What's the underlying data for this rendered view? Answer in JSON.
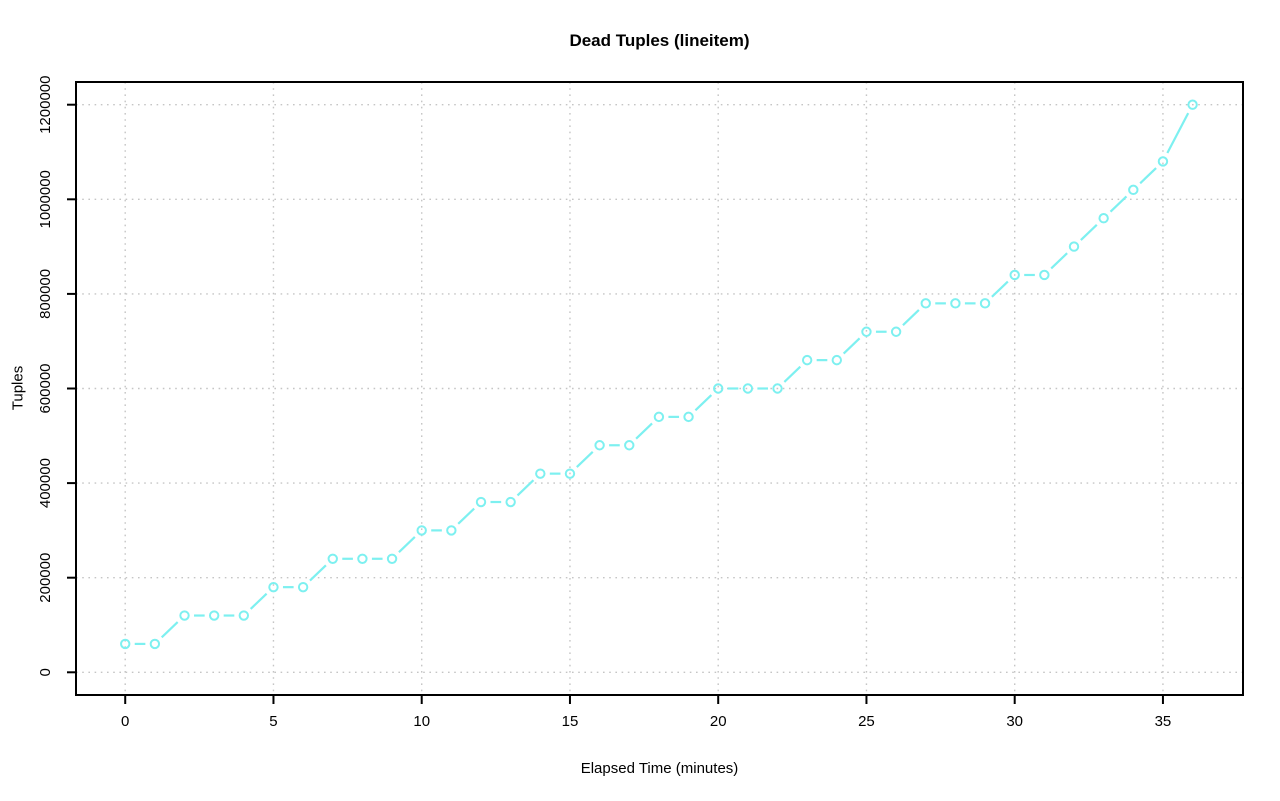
{
  "page": {
    "background": "#ffffff"
  },
  "chart_data": {
    "type": "line",
    "title": "Dead Tuples (lineitem)",
    "xlabel": "Elapsed Time (minutes)",
    "ylabel": "Tuples",
    "x": [
      0,
      1,
      2,
      3,
      4,
      5,
      6,
      7,
      8,
      9,
      10,
      11,
      12,
      13,
      14,
      15,
      16,
      17,
      18,
      19,
      20,
      21,
      22,
      23,
      24,
      25,
      26,
      27,
      28,
      29,
      30,
      31,
      32,
      33,
      34,
      35,
      36
    ],
    "values": [
      60000,
      60000,
      120000,
      120000,
      120000,
      180000,
      180000,
      240000,
      240000,
      240000,
      300000,
      300000,
      360000,
      360000,
      420000,
      420000,
      480000,
      480000,
      540000,
      540000,
      600000,
      600000,
      600000,
      660000,
      660000,
      720000,
      720000,
      780000,
      780000,
      780000,
      840000,
      840000,
      900000,
      960000,
      1020000,
      1080000,
      1200000
    ],
    "xticks": [
      0,
      5,
      10,
      15,
      20,
      25,
      30,
      35
    ],
    "yticks": [
      0,
      200000,
      400000,
      600000,
      800000,
      1000000,
      1200000
    ],
    "xlim": [
      -1.66,
      37.7
    ],
    "ylim": [
      -48000,
      1248000
    ],
    "grid": true,
    "grid_style": "dotted",
    "legend_position": "none",
    "marker": "open-circle",
    "line_style": "points-and-lines",
    "colors": {
      "series": "#7DF0F0",
      "grid": "#C5C5C5",
      "axis": "#000000",
      "background": "#FFFFFF"
    }
  }
}
